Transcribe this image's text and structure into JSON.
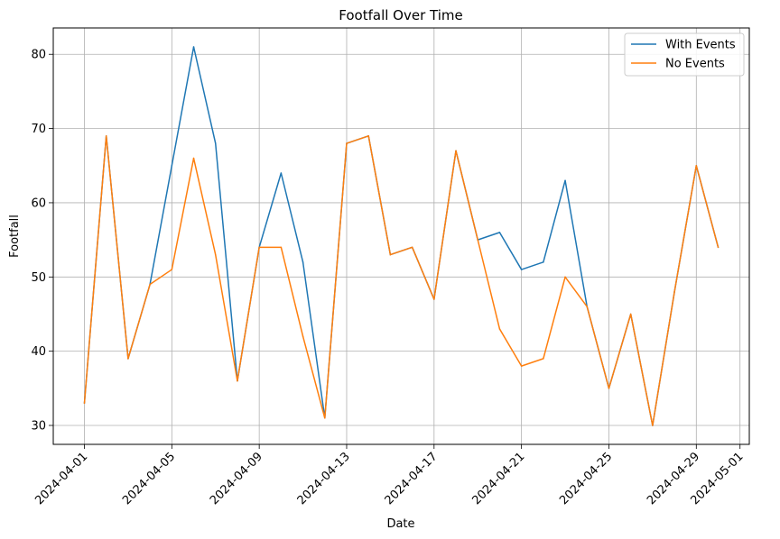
{
  "chart_data": {
    "type": "line",
    "title": "Footfall Over Time",
    "xlabel": "Date",
    "ylabel": "Footfall",
    "x": [
      "2024-04-01",
      "2024-04-02",
      "2024-04-03",
      "2024-04-04",
      "2024-04-05",
      "2024-04-06",
      "2024-04-07",
      "2024-04-08",
      "2024-04-09",
      "2024-04-10",
      "2024-04-11",
      "2024-04-12",
      "2024-04-13",
      "2024-04-14",
      "2024-04-15",
      "2024-04-16",
      "2024-04-17",
      "2024-04-18",
      "2024-04-19",
      "2024-04-20",
      "2024-04-21",
      "2024-04-22",
      "2024-04-23",
      "2024-04-24",
      "2024-04-25",
      "2024-04-26",
      "2024-04-27",
      "2024-04-28",
      "2024-04-29",
      "2024-04-30"
    ],
    "series": [
      {
        "name": "With Events",
        "color": "#1f77b4",
        "values": [
          33,
          69,
          39,
          49,
          65,
          81,
          68,
          36,
          54,
          64,
          52,
          31,
          68,
          69,
          53,
          54,
          47,
          67,
          55,
          56,
          51,
          52,
          63,
          46,
          35,
          45,
          30,
          48,
          65,
          54
        ]
      },
      {
        "name": "No Events",
        "color": "#ff7f0e",
        "values": [
          33,
          69,
          39,
          49,
          51,
          66,
          53,
          36,
          54,
          54,
          42,
          31,
          68,
          69,
          53,
          54,
          47,
          67,
          55,
          43,
          38,
          39,
          50,
          46,
          35,
          45,
          30,
          48,
          65,
          54
        ]
      }
    ],
    "x_ticks": [
      "2024-04-01",
      "2024-04-05",
      "2024-04-09",
      "2024-04-13",
      "2024-04-17",
      "2024-04-21",
      "2024-04-25",
      "2024-04-29",
      "2024-05-01"
    ],
    "y_ticks": [
      30,
      40,
      50,
      60,
      70,
      80
    ],
    "xlim": [
      "2024-03-30T13:48",
      "2024-05-01T10:12"
    ],
    "ylim": [
      27.45,
      83.55
    ],
    "grid": true,
    "legend_position": "top-right"
  }
}
